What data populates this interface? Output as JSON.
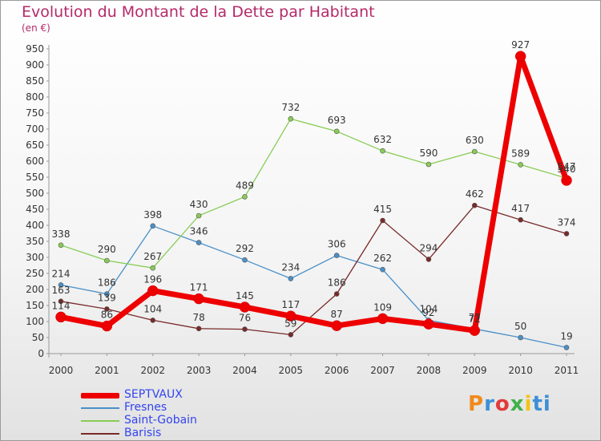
{
  "chart_data": {
    "type": "line",
    "title": "Evolution du Montant de la Dette par Habitant",
    "subtitle": "(en €)",
    "x": [
      "2000",
      "2001",
      "2002",
      "2003",
      "2004",
      "2005",
      "2006",
      "2007",
      "2008",
      "2009",
      "2010",
      "2011"
    ],
    "ylim": [
      0,
      950
    ],
    "yticks": [
      0,
      50,
      100,
      150,
      200,
      250,
      300,
      350,
      400,
      450,
      500,
      550,
      600,
      650,
      700,
      750,
      800,
      850,
      900,
      950
    ],
    "grid": false,
    "legend_position": "bottom-left",
    "series": [
      {
        "name": "SEPTVAUX",
        "color": "#ee0000",
        "values": [
          114,
          86,
          196,
          171,
          145,
          117,
          87,
          109,
          92,
          72,
          927,
          540
        ]
      },
      {
        "name": "Fresnes",
        "color": "#4a90c8",
        "values": [
          214,
          186,
          398,
          346,
          292,
          234,
          306,
          262,
          104,
          77,
          50,
          19
        ]
      },
      {
        "name": "Saint-Gobain",
        "color": "#88cc55",
        "values": [
          338,
          290,
          267,
          430,
          489,
          732,
          693,
          632,
          590,
          630,
          589,
          547
        ]
      },
      {
        "name": "Barisis",
        "color": "#7a2a2a",
        "values": [
          163,
          139,
          104,
          78,
          76,
          59,
          186,
          415,
          294,
          462,
          417,
          374
        ]
      }
    ],
    "labels": {
      "SEPTVAUX": [
        "114",
        "86",
        "196",
        "171",
        "145",
        "117",
        "87",
        "109",
        "92",
        "72",
        "927",
        "540"
      ],
      "Fresnes": [
        "214",
        "186",
        "398",
        "346",
        "292",
        "234",
        "306",
        "262",
        "104",
        "77",
        "50",
        "19"
      ],
      "Saint-Gobain": [
        "338",
        "290",
        "267",
        "430",
        "489",
        "732",
        "693",
        "632",
        "590",
        "630",
        "589",
        "547"
      ],
      "Barisis": [
        "163",
        "139",
        "104",
        "78",
        "76",
        "59",
        "186",
        "415",
        "294",
        "462",
        "417",
        "374"
      ]
    }
  },
  "logo_text": "Proxiti"
}
